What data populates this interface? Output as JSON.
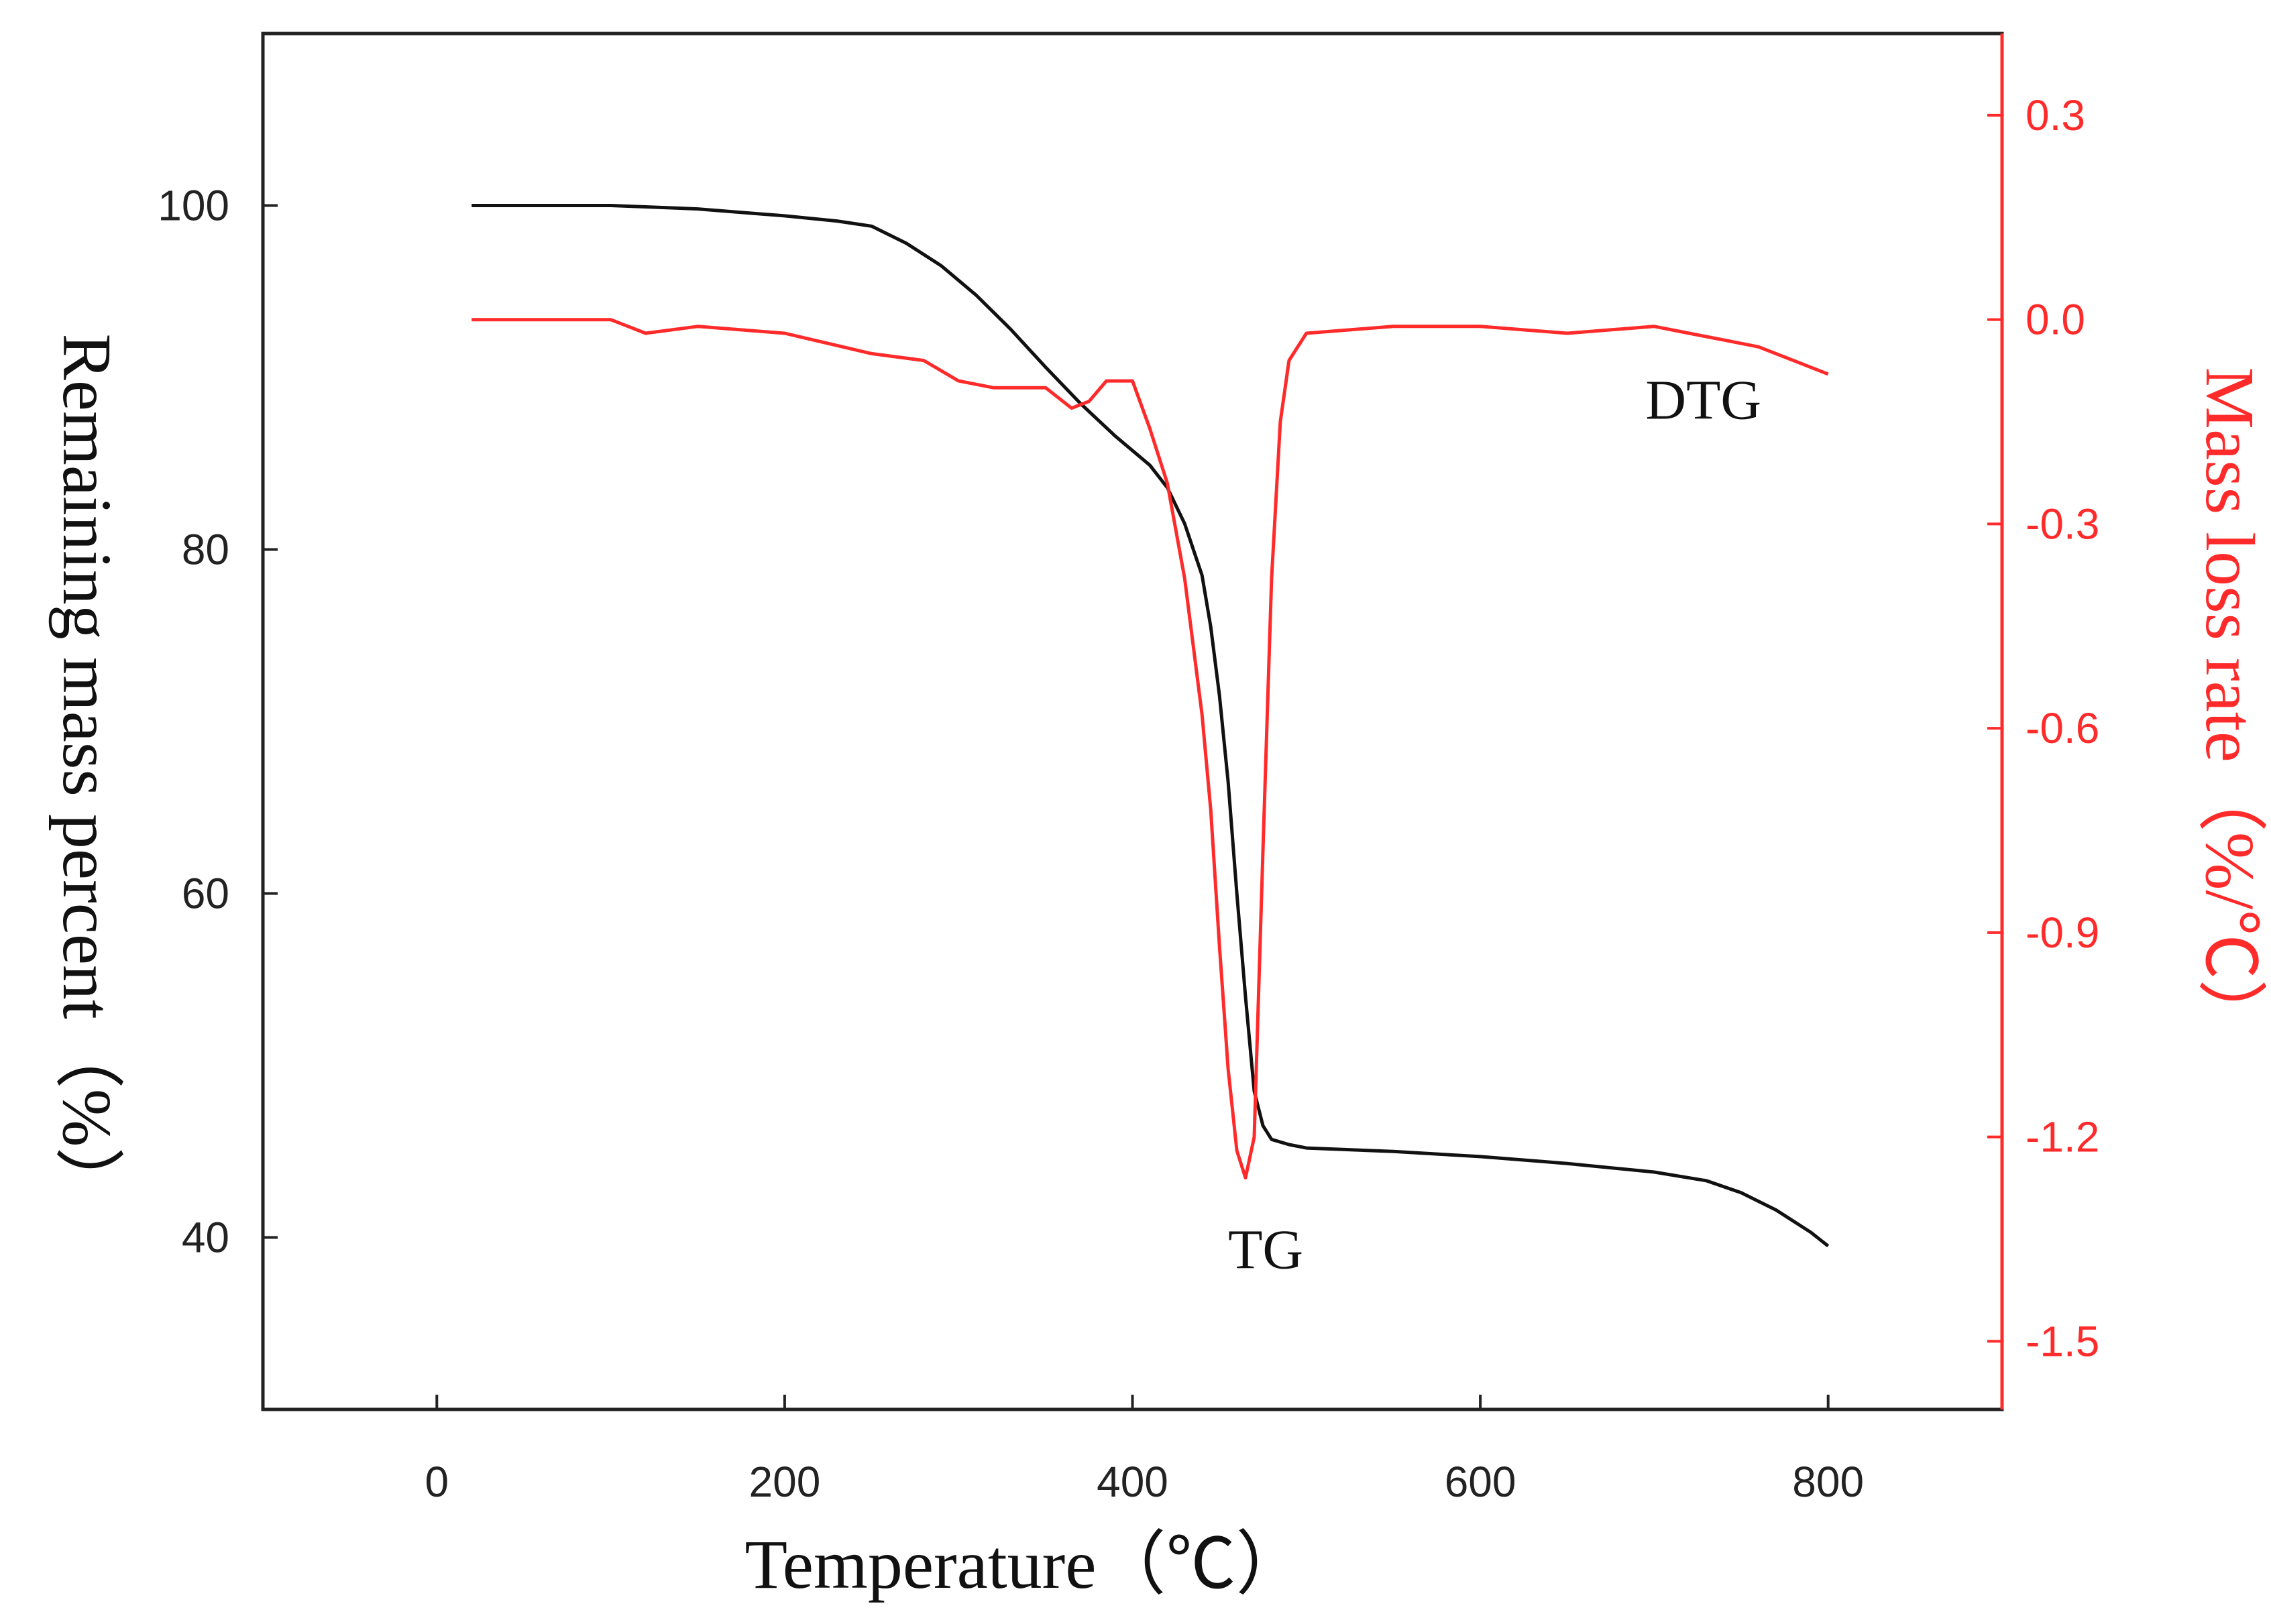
{
  "colors": {
    "tg": "#111111",
    "dtg": "#ff2a2a",
    "frame": "#222222",
    "background": "#ffffff"
  },
  "chart_data": {
    "type": "line",
    "grid": false,
    "xlabel": "Temperature（℃）",
    "ylabel_left": "Remaining mass percent（%）",
    "ylabel_right": "Mass loss rate（%/℃）",
    "xlim": [
      -100,
      900
    ],
    "ylim_left": [
      30,
      110
    ],
    "ylim_right": [
      -1.6,
      0.42
    ],
    "x_ticks": [
      {
        "value": 0,
        "label": "0"
      },
      {
        "value": 200,
        "label": "200"
      },
      {
        "value": 400,
        "label": "400"
      },
      {
        "value": 600,
        "label": "600"
      },
      {
        "value": 800,
        "label": "800"
      }
    ],
    "y_ticks_left": [
      {
        "value": 40,
        "label": "40"
      },
      {
        "value": 60,
        "label": "60"
      },
      {
        "value": 80,
        "label": "80"
      },
      {
        "value": 100,
        "label": "100"
      }
    ],
    "y_ticks_right": [
      {
        "value": 0.3,
        "label": "0.3"
      },
      {
        "value": 0.0,
        "label": "0.0"
      },
      {
        "value": -0.3,
        "label": "-0.3"
      },
      {
        "value": -0.6,
        "label": "-0.6"
      },
      {
        "value": -0.9,
        "label": "-0.9"
      },
      {
        "value": -1.2,
        "label": "-1.2"
      },
      {
        "value": -1.5,
        "label": "-1.5"
      }
    ],
    "annotations": [
      {
        "text": "TG",
        "x": 455,
        "y_left": 38.2
      },
      {
        "text": "DTG",
        "x": 695,
        "y_left": 87.6
      }
    ],
    "series": [
      {
        "name": "TG",
        "axis": "left",
        "x": [
          20,
          100,
          150,
          200,
          230,
          250,
          270,
          290,
          310,
          330,
          350,
          370,
          390,
          410,
          420,
          430,
          440,
          445,
          450,
          455,
          460,
          465,
          470,
          475,
          480,
          490,
          500,
          550,
          600,
          650,
          700,
          730,
          750,
          770,
          790,
          800
        ],
        "y": [
          100,
          100,
          99.8,
          99.4,
          99.1,
          98.8,
          97.8,
          96.5,
          94.8,
          92.8,
          90.6,
          88.5,
          86.6,
          84.9,
          83.6,
          81.5,
          78.5,
          75.5,
          71.5,
          66.5,
          60.0,
          54.0,
          48.5,
          46.5,
          45.7,
          45.4,
          45.2,
          45.0,
          44.7,
          44.3,
          43.8,
          43.3,
          42.6,
          41.6,
          40.3,
          39.5
        ]
      },
      {
        "name": "DTG",
        "axis": "right",
        "x": [
          20,
          100,
          110,
          120,
          150,
          200,
          250,
          280,
          300,
          320,
          350,
          365,
          375,
          385,
          400,
          410,
          420,
          430,
          440,
          445,
          450,
          455,
          460,
          465,
          470,
          475,
          480,
          485,
          490,
          500,
          550,
          600,
          650,
          700,
          720,
          740,
          760,
          780,
          800
        ],
        "y": [
          0.0,
          0.0,
          -0.01,
          -0.02,
          -0.01,
          -0.02,
          -0.05,
          -0.06,
          -0.09,
          -0.1,
          -0.1,
          -0.13,
          -0.12,
          -0.09,
          -0.09,
          -0.16,
          -0.24,
          -0.38,
          -0.58,
          -0.72,
          -0.92,
          -1.1,
          -1.22,
          -1.26,
          -1.2,
          -0.78,
          -0.38,
          -0.15,
          -0.06,
          -0.02,
          -0.01,
          -0.01,
          -0.02,
          -0.01,
          -0.02,
          -0.03,
          -0.04,
          -0.06,
          -0.08
        ]
      }
    ]
  }
}
